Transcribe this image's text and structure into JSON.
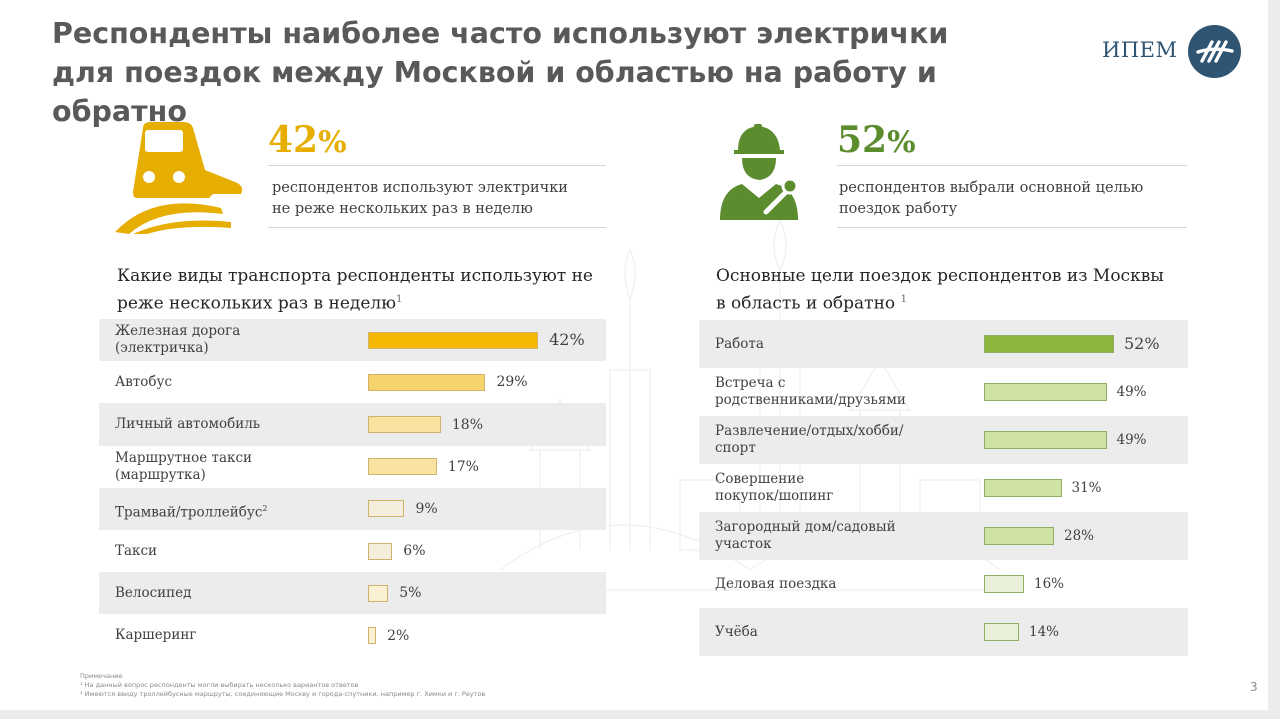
{
  "title": "Респонденты наиболее часто используют электрички для поездок между Москвой и областью на работу и обратно",
  "logo": {
    "text": "ИПЕМ",
    "icon": "ipem-logo-icon"
  },
  "kpis": [
    {
      "value": "42",
      "unit": "%",
      "line1": "респондентов используют электрички",
      "line2": "не реже нескольких раз в неделю",
      "color": "#E6AE00",
      "icon": "train-icon"
    },
    {
      "value": "52",
      "unit": "%",
      "line1": "респондентов выбрали основной целью",
      "line2": "поездок работу",
      "color": "#5B8C2E",
      "icon": "worker-icon"
    }
  ],
  "chart_data": [
    {
      "type": "bar",
      "orientation": "horizontal",
      "title_line1": "Какие виды транспорта респонденты используют не",
      "title_line2": "реже нескольких раз в неделю",
      "title_note": "1",
      "categories": [
        [
          "Железная дорога",
          "(электричка)"
        ],
        [
          "Автобус"
        ],
        [
          "Личный автомобиль"
        ],
        [
          "Маршрутное такси",
          "(маршрутка)"
        ],
        [
          "Трамвай/троллейбус"
        ],
        [
          "Такси"
        ],
        [
          "Велосипед"
        ],
        [
          "Каршеринг"
        ]
      ],
      "category_notes": [
        "",
        "",
        "",
        "",
        "2",
        "",
        "",
        ""
      ],
      "values": [
        42,
        29,
        18,
        17,
        9,
        6,
        5,
        2
      ],
      "value_labels": [
        "42%",
        "29%",
        "18%",
        "17%",
        "9%",
        "6%",
        "5%",
        "2%"
      ],
      "colors": [
        "#F5B800",
        "#F7D36E",
        "#FAE3A0",
        "#FAE3A0",
        "#F6EEDD",
        "#F6EEDD",
        "#FAF0D2",
        "#FAF0D2"
      ]
    },
    {
      "type": "bar",
      "orientation": "horizontal",
      "title_line1": "Основные цели поездок респондентов из Москвы",
      "title_line2": "в область и обратно",
      "title_note": "1",
      "categories": [
        [
          "Работа"
        ],
        [
          "Встреча с",
          "родственниками/друзьями"
        ],
        [
          "Развлечение/отдых/хобби/",
          "спорт"
        ],
        [
          "Совершение",
          "покупок/шопинг"
        ],
        [
          "Загородный дом/садовый",
          "участок"
        ],
        [
          "Деловая поездка"
        ],
        [
          "Учёба"
        ]
      ],
      "values": [
        52,
        49,
        49,
        31,
        28,
        16,
        14
      ],
      "value_labels": [
        "52%",
        "49%",
        "49%",
        "31%",
        "28%",
        "16%",
        "14%"
      ],
      "colors": [
        "#8DB63C",
        "#CFE3A6",
        "#CFE3A6",
        "#CFE3A6",
        "#CFE3A6",
        "#E8F0D8",
        "#E8F0D8"
      ]
    }
  ],
  "notes": [
    "Примечание",
    "¹ На данный вопрос респонденты могли выбирать несколько вариантов ответов",
    "² Имеются ввиду троллейбусные маршруты, соединяющие Москву и города-спутники, например г. Химки и г. Реутов"
  ],
  "page_number": "3"
}
